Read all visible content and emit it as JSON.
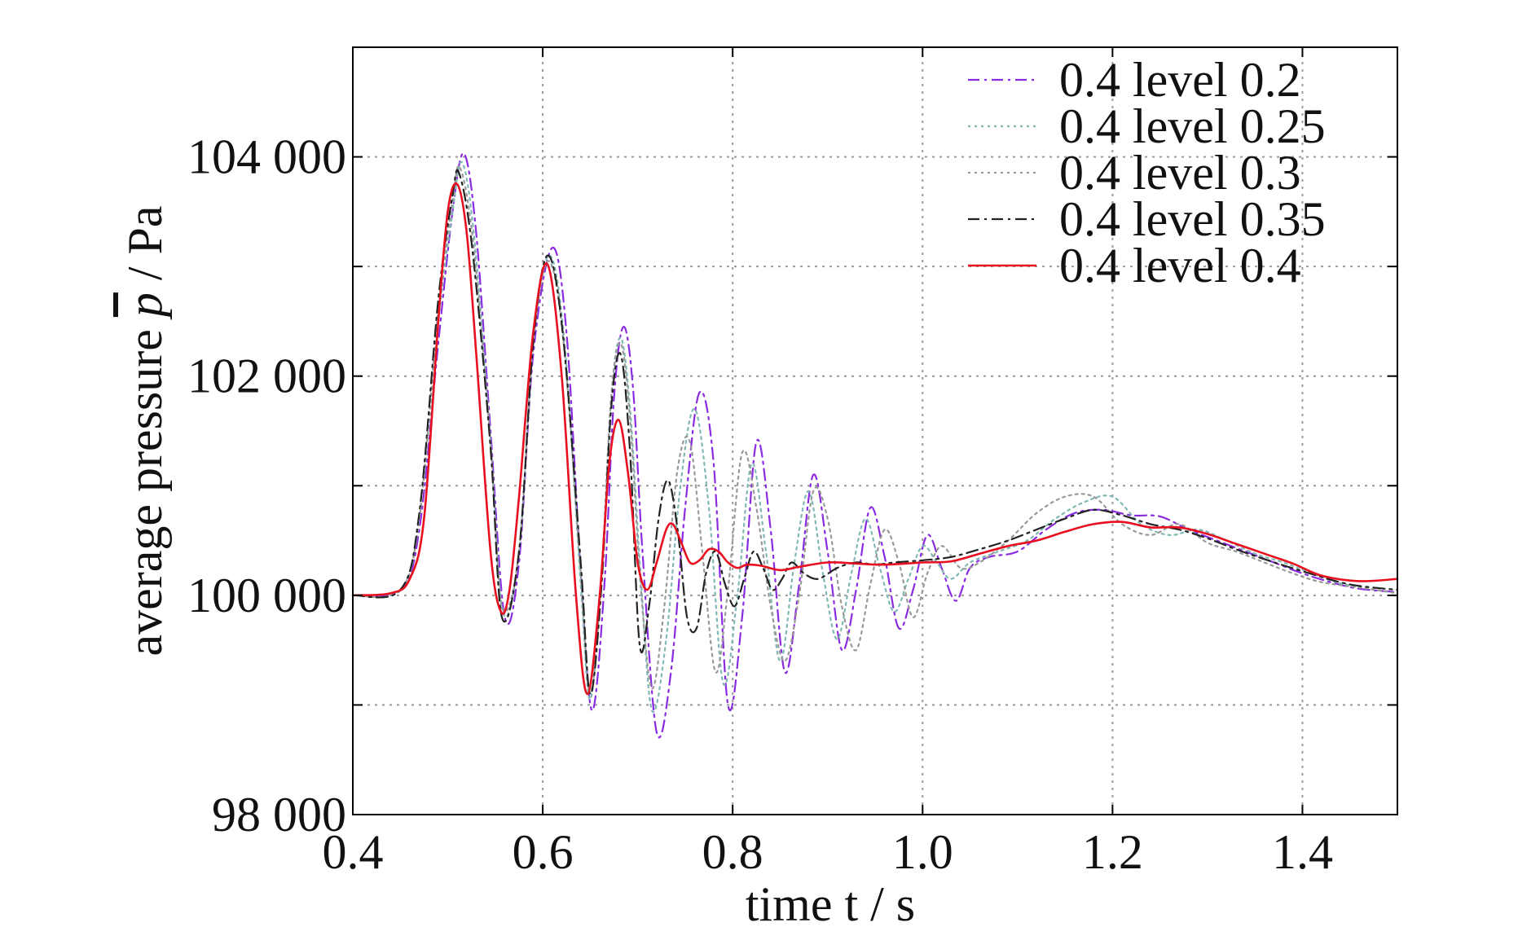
{
  "chart_data": {
    "type": "line",
    "title": "",
    "xlabel": "time t / s",
    "ylabel_text": "average pressure",
    "ylabel_symbol": "p",
    "ylabel_unit": " / Pa",
    "xlim": [
      0.4,
      1.5
    ],
    "ylim": [
      98000,
      105000
    ],
    "x_ticks": [
      0.4,
      0.6,
      0.8,
      1.0,
      1.2,
      1.4
    ],
    "x_tick_labels": [
      "0.4",
      "0.6",
      "0.8",
      "1.0",
      "1.2",
      "1.4"
    ],
    "y_ticks": [
      98000,
      99000,
      100000,
      101000,
      102000,
      103000,
      104000
    ],
    "y_tick_labels": [
      "98 000",
      "",
      "100 000",
      "",
      "102 000",
      "",
      "104 000"
    ],
    "grid": true,
    "legend_position": "top-right",
    "series": [
      {
        "name": "0.4 level 0.2",
        "color": "#8a2be2",
        "dash": "dashdot",
        "x": [
          0.4,
          0.45,
          0.47,
          0.49,
          0.505,
          0.517,
          0.53,
          0.545,
          0.56,
          0.575,
          0.59,
          0.61,
          0.625,
          0.64,
          0.652,
          0.665,
          0.675,
          0.685,
          0.695,
          0.705,
          0.72,
          0.735,
          0.75,
          0.765,
          0.78,
          0.795,
          0.81,
          0.825,
          0.84,
          0.855,
          0.87,
          0.885,
          0.9,
          0.915,
          0.93,
          0.945,
          0.96,
          0.975,
          0.99,
          1.005,
          1.02,
          1.035,
          1.05,
          1.07,
          1.1,
          1.13,
          1.16,
          1.19,
          1.22,
          1.25,
          1.28,
          1.31,
          1.34,
          1.37,
          1.4,
          1.43,
          1.46,
          1.5
        ],
        "y": [
          100000,
          100050,
          100600,
          102300,
          103500,
          104030,
          103300,
          101500,
          99800,
          100300,
          102200,
          103170,
          102400,
          100200,
          98950,
          100100,
          101800,
          102450,
          101900,
          100400,
          98750,
          99300,
          100800,
          101850,
          101200,
          99000,
          99800,
          101400,
          100600,
          99300,
          100100,
          101100,
          100400,
          99500,
          100050,
          100800,
          100350,
          99700,
          100050,
          100550,
          100250,
          99950,
          100250,
          100350,
          100400,
          100600,
          100750,
          100780,
          100730,
          100720,
          100600,
          100500,
          100400,
          100300,
          100200,
          100120,
          100060,
          100030
        ]
      },
      {
        "name": "0.4 level 0.25",
        "color": "#7fb8b4",
        "dash": "dotted",
        "x": [
          0.4,
          0.45,
          0.47,
          0.49,
          0.505,
          0.515,
          0.528,
          0.545,
          0.558,
          0.575,
          0.59,
          0.607,
          0.623,
          0.64,
          0.65,
          0.662,
          0.672,
          0.682,
          0.692,
          0.703,
          0.715,
          0.73,
          0.745,
          0.76,
          0.775,
          0.79,
          0.805,
          0.82,
          0.835,
          0.85,
          0.865,
          0.88,
          0.895,
          0.91,
          0.925,
          0.94,
          0.955,
          0.97,
          0.985,
          1.0,
          1.015,
          1.03,
          1.05,
          1.08,
          1.11,
          1.14,
          1.17,
          1.2,
          1.23,
          1.26,
          1.29,
          1.32,
          1.35,
          1.38,
          1.41,
          1.44,
          1.47,
          1.5
        ],
        "y": [
          100000,
          100050,
          100700,
          102500,
          103500,
          103950,
          103250,
          101400,
          99850,
          100400,
          102300,
          103100,
          102300,
          100100,
          99050,
          100200,
          101800,
          102350,
          101700,
          100200,
          98950,
          99600,
          101000,
          101700,
          100800,
          99200,
          100000,
          101200,
          100400,
          99400,
          100300,
          100950,
          100200,
          99600,
          100200,
          100700,
          100250,
          99850,
          100150,
          100450,
          100300,
          100150,
          100300,
          100400,
          100500,
          100700,
          100850,
          100900,
          100650,
          100550,
          100600,
          100500,
          100380,
          100300,
          100200,
          100110,
          100060,
          100020
        ]
      },
      {
        "name": "0.4 level 0.3",
        "color": "#999999",
        "dash": "dotted",
        "x": [
          0.4,
          0.45,
          0.47,
          0.49,
          0.505,
          0.513,
          0.527,
          0.545,
          0.557,
          0.575,
          0.59,
          0.606,
          0.622,
          0.64,
          0.65,
          0.662,
          0.672,
          0.682,
          0.692,
          0.703,
          0.715,
          0.728,
          0.742,
          0.755,
          0.768,
          0.782,
          0.795,
          0.81,
          0.825,
          0.84,
          0.855,
          0.87,
          0.885,
          0.9,
          0.915,
          0.93,
          0.945,
          0.96,
          0.975,
          0.99,
          1.005,
          1.02,
          1.04,
          1.06,
          1.09,
          1.12,
          1.15,
          1.18,
          1.21,
          1.24,
          1.27,
          1.3,
          1.33,
          1.36,
          1.39,
          1.42,
          1.46,
          1.5
        ],
        "y": [
          100000,
          100050,
          100700,
          102600,
          103600,
          103900,
          103200,
          101400,
          99900,
          100400,
          102300,
          103050,
          102300,
          100200,
          99100,
          100200,
          101800,
          102300,
          101600,
          100100,
          99150,
          99900,
          101150,
          101400,
          100400,
          99300,
          100050,
          101300,
          100800,
          99900,
          99400,
          100000,
          100950,
          100700,
          99900,
          99500,
          100100,
          100600,
          100300,
          99800,
          100200,
          100450,
          100250,
          100300,
          100500,
          100750,
          100900,
          100900,
          100650,
          100550,
          100650,
          100480,
          100400,
          100300,
          100200,
          100120,
          100070,
          100020
        ]
      },
      {
        "name": "0.4 level 0.35",
        "color": "#222222",
        "dash": "dashdot",
        "x": [
          0.4,
          0.45,
          0.47,
          0.49,
          0.505,
          0.512,
          0.526,
          0.545,
          0.557,
          0.575,
          0.59,
          0.605,
          0.621,
          0.64,
          0.65,
          0.662,
          0.672,
          0.682,
          0.692,
          0.702,
          0.712,
          0.722,
          0.732,
          0.742,
          0.752,
          0.762,
          0.772,
          0.782,
          0.792,
          0.802,
          0.812,
          0.822,
          0.832,
          0.842,
          0.852,
          0.862,
          0.875,
          0.89,
          0.91,
          0.93,
          0.95,
          0.97,
          1.0,
          1.03,
          1.06,
          1.09,
          1.12,
          1.15,
          1.18,
          1.21,
          1.24,
          1.27,
          1.3,
          1.33,
          1.36,
          1.4,
          1.45,
          1.5
        ],
        "y": [
          100000,
          100050,
          100750,
          102700,
          103650,
          103850,
          103150,
          101350,
          99800,
          100400,
          102300,
          103100,
          102400,
          100300,
          99100,
          100100,
          101700,
          102200,
          101300,
          99550,
          99900,
          100700,
          101050,
          100600,
          99800,
          99700,
          100200,
          100400,
          100100,
          99900,
          100150,
          100400,
          100250,
          100050,
          100150,
          100300,
          100200,
          100150,
          100250,
          100300,
          100280,
          100300,
          100320,
          100350,
          100420,
          100500,
          100600,
          100700,
          100780,
          100730,
          100650,
          100600,
          100520,
          100420,
          100330,
          100220,
          100100,
          100050
        ]
      },
      {
        "name": "0.4 level 0.4",
        "color": "#e8101e",
        "dash": "solid",
        "x": [
          0.4,
          0.44,
          0.46,
          0.475,
          0.49,
          0.5,
          0.51,
          0.52,
          0.53,
          0.545,
          0.556,
          0.565,
          0.575,
          0.59,
          0.605,
          0.62,
          0.635,
          0.647,
          0.66,
          0.67,
          0.68,
          0.69,
          0.7,
          0.71,
          0.72,
          0.73,
          0.737,
          0.745,
          0.755,
          0.765,
          0.775,
          0.785,
          0.795,
          0.805,
          0.815,
          0.83,
          0.85,
          0.87,
          0.9,
          0.93,
          0.96,
          1.0,
          1.03,
          1.06,
          1.09,
          1.12,
          1.15,
          1.18,
          1.21,
          1.24,
          1.27,
          1.3,
          1.33,
          1.36,
          1.39,
          1.42,
          1.46,
          1.5
        ],
        "y": [
          100000,
          100020,
          100150,
          100700,
          102500,
          103500,
          103750,
          103300,
          102200,
          100400,
          99850,
          100050,
          100900,
          102400,
          103020,
          102000,
          100000,
          99100,
          100000,
          101200,
          101600,
          101100,
          100300,
          100050,
          100300,
          100600,
          100650,
          100500,
          100300,
          100320,
          100420,
          100400,
          100300,
          100250,
          100280,
          100270,
          100230,
          100260,
          100300,
          100290,
          100280,
          100300,
          100310,
          100380,
          100450,
          100500,
          100580,
          100650,
          100670,
          100620,
          100620,
          100560,
          100470,
          100380,
          100290,
          100180,
          100130,
          100150
        ]
      }
    ]
  }
}
